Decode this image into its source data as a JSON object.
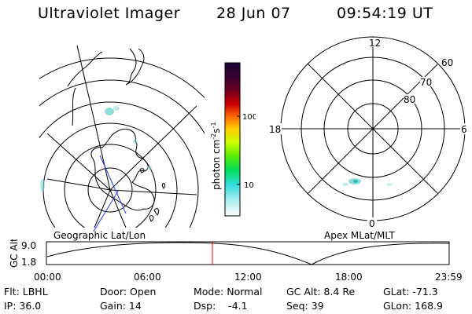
{
  "header": {
    "instrument": "Ultraviolet Imager",
    "date": "28 Jun 07",
    "time": "09:54:19 UT"
  },
  "colorbar": {
    "unit_main": "photon cm",
    "unit_sup1": "-2",
    "unit_mid": "s",
    "unit_sup2": "-1",
    "ticks": [
      "100",
      "10"
    ]
  },
  "right_map": {
    "lat_labels": [
      "80",
      "70",
      "60"
    ],
    "mlt_labels": {
      "top": "12",
      "left": "18",
      "right": "6",
      "bottom": "0"
    }
  },
  "panels": {
    "left_caption": "Geographic Lat/Lon",
    "right_caption": "Apex MLat/MLT"
  },
  "altitude_plot": {
    "ylabel": "GC Alt",
    "yticks": [
      "9.0",
      "1.8"
    ],
    "xticks": [
      "00:00",
      "06:00",
      "12:00",
      "18:00",
      "23:59"
    ],
    "marker_color": "#ff0000"
  },
  "info": {
    "flt": "Flt: LBHL",
    "ip": "IP: 36.0",
    "door": "Door: Open",
    "gain": "Gain: 14",
    "mode": "Mode: Normal",
    "dsp": "Dsp:    -4.1",
    "gcalt": "GC Alt: 8.4 Re",
    "seq": "Seq: 39",
    "glat": "GLat: -71.3",
    "glon": "GLon: 168.9"
  }
}
